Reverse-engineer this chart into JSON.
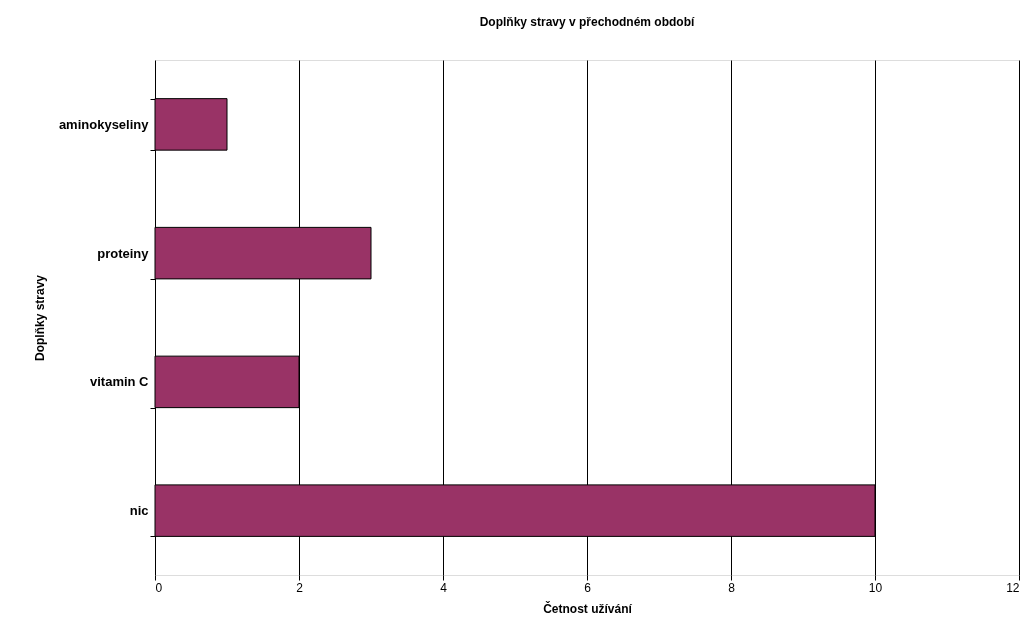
{
  "chart_data": {
    "type": "bar",
    "orientation": "horizontal",
    "title": "Doplňky stravy v přechodném období",
    "xlabel": "Četnost užívání",
    "ylabel": "Doplňky stravy",
    "categories": [
      "aminokyseliny",
      "proteiny",
      "vitamin C",
      "nic"
    ],
    "values": [
      1,
      3,
      2,
      10
    ],
    "color": "#993366",
    "xlim": [
      0,
      12
    ],
    "xticks": [
      0,
      2,
      4,
      6,
      8,
      10,
      12
    ],
    "grid": "x"
  }
}
